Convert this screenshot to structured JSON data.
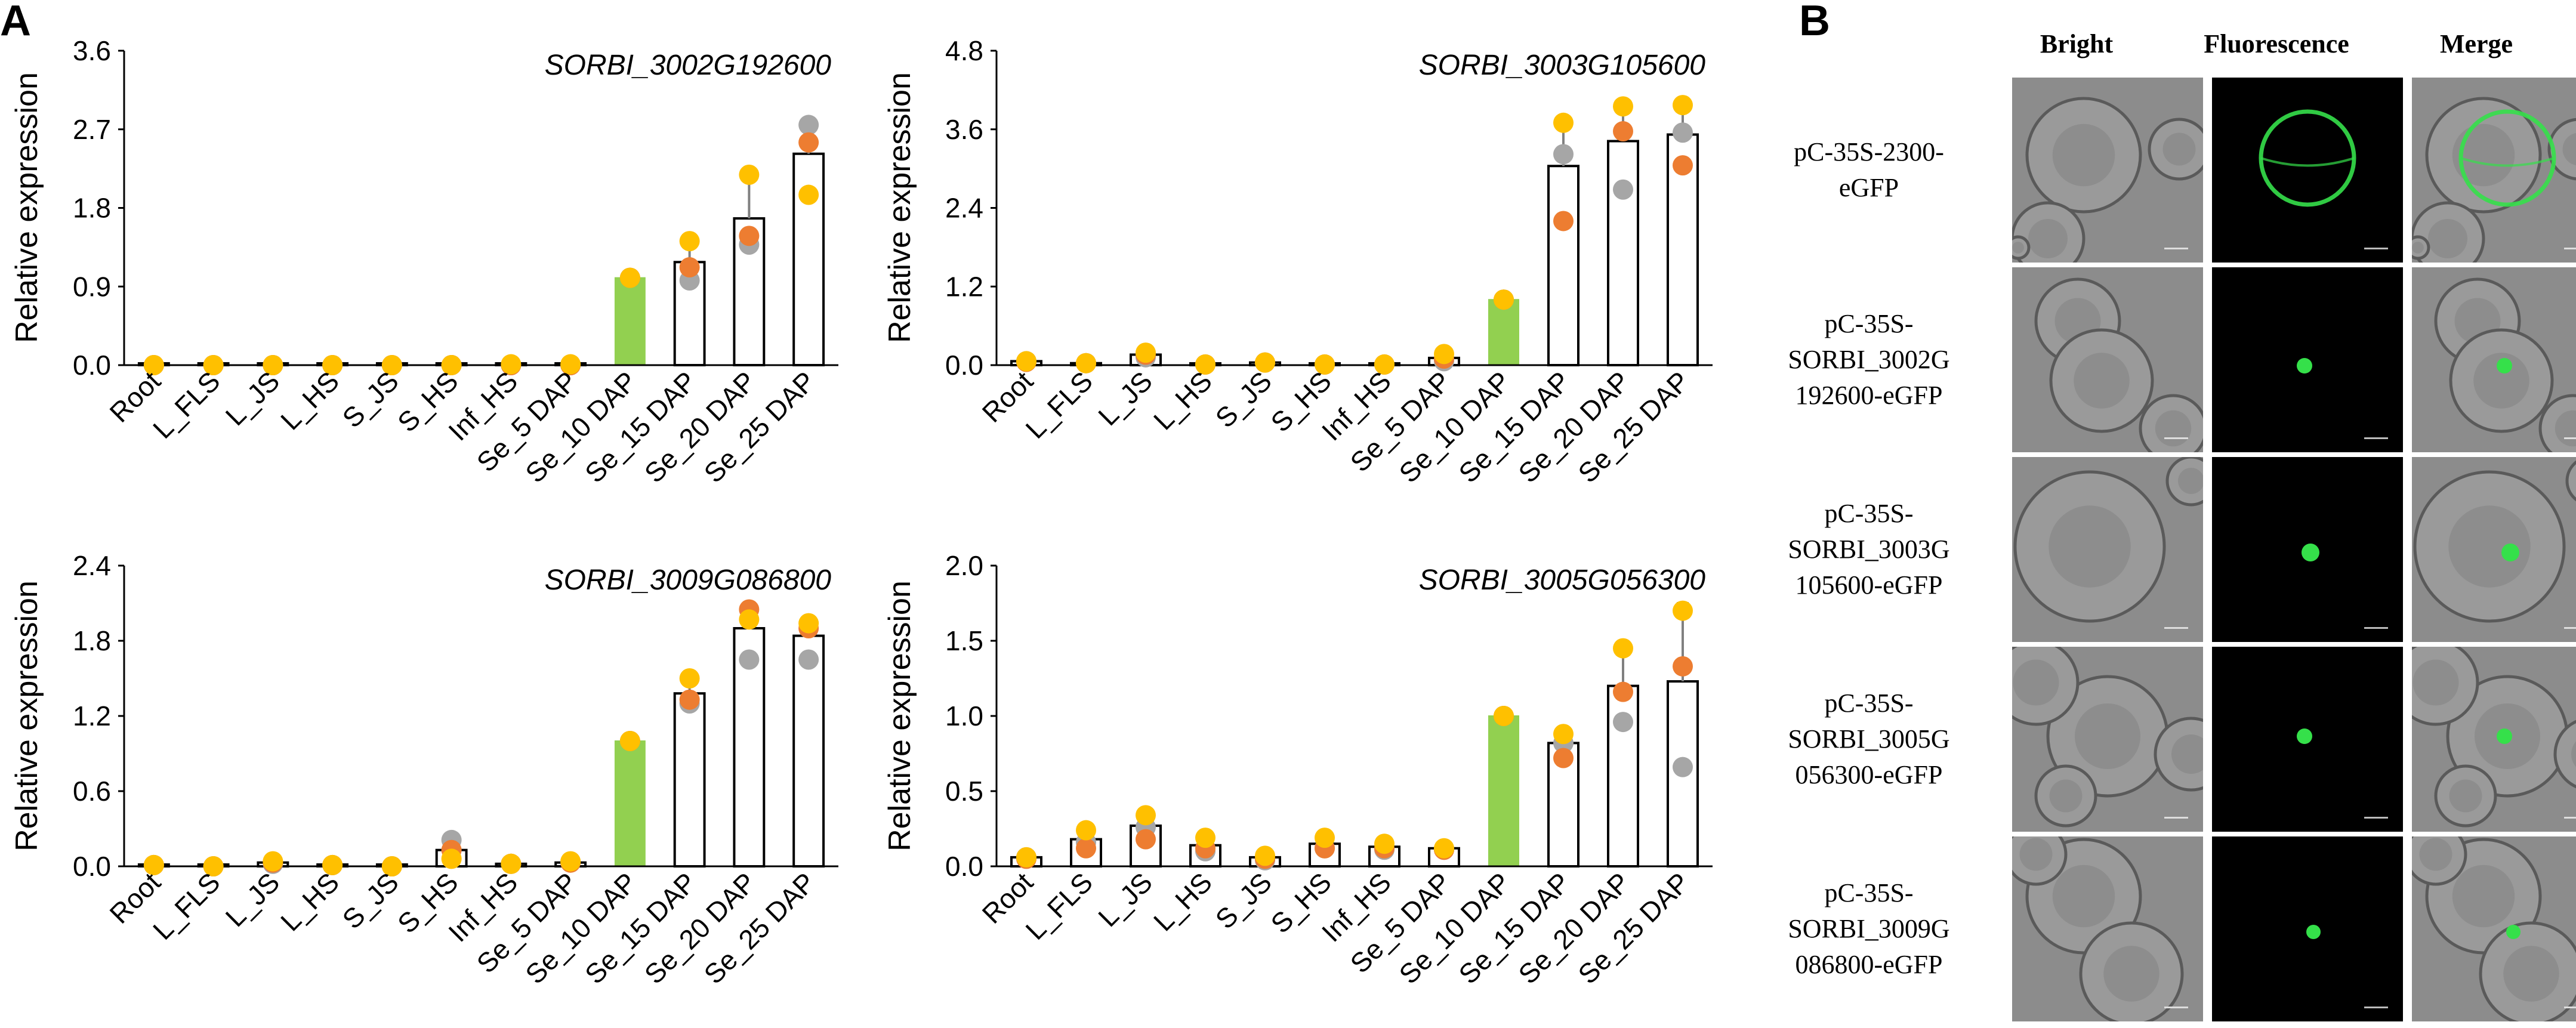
{
  "panels": {
    "a_label": "A",
    "b_label": "B"
  },
  "colors": {
    "bar_outline": "#000000",
    "reference_fill": "#92D050",
    "gray_dot": "#A6A6A6",
    "orange_dot": "#ED7D31",
    "yellow_dot": "#FFC000",
    "gfp": "#35e04a"
  },
  "chart_data": [
    {
      "type": "bar",
      "title": "SORBI_3002G192600",
      "xlabel": "",
      "ylabel": "Relative expression",
      "ylim": [
        0,
        3.6
      ],
      "yticks": [
        "0.0",
        "0.9",
        "1.8",
        "2.7",
        "3.6"
      ],
      "categories": [
        "Root",
        "L_FLS",
        "L_JS",
        "L_HS",
        "S_JS",
        "S_HS",
        "Inf_HS",
        "Se_5 DAP",
        "Se_10 DAP",
        "Se_15 DAP",
        "Se_20 DAP",
        "Se_25 DAP"
      ],
      "values": [
        0.0,
        0.0,
        0.0,
        0.0,
        0.0,
        0.0,
        0.01,
        0.01,
        1.0,
        1.18,
        1.68,
        2.42
      ],
      "errors": [
        0.0,
        0.0,
        0.0,
        0.0,
        0.0,
        0.0,
        0.0,
        0.0,
        0.0,
        0.2,
        0.48,
        0.4
      ],
      "replicates": {
        "gray": [
          0.0,
          0.0,
          0.0,
          0.0,
          0.0,
          0.0,
          0.0,
          0.0,
          1.0,
          0.97,
          1.38,
          2.75
        ],
        "orange": [
          0.0,
          0.0,
          0.0,
          0.0,
          0.0,
          0.0,
          0.0,
          0.0,
          1.0,
          1.12,
          1.48,
          2.55
        ],
        "yellow": [
          0.0,
          0.0,
          0.0,
          0.0,
          0.0,
          0.0,
          0.01,
          0.01,
          1.0,
          1.42,
          2.18,
          1.95
        ]
      }
    },
    {
      "type": "bar",
      "title": "SORBI_3003G105600",
      "xlabel": "",
      "ylabel": "Relative expression",
      "ylim": [
        0,
        4.8
      ],
      "yticks": [
        "0.0",
        "1.2",
        "2.4",
        "3.6",
        "4.8"
      ],
      "categories": [
        "Root",
        "L_FLS",
        "L_JS",
        "L_HS",
        "S_JS",
        "S_HS",
        "Inf_HS",
        "Se_5 DAP",
        "Se_10 DAP",
        "Se_15 DAP",
        "Se_20 DAP",
        "Se_25 DAP"
      ],
      "values": [
        0.06,
        0.03,
        0.16,
        0.01,
        0.04,
        0.01,
        0.01,
        0.11,
        1.0,
        3.04,
        3.42,
        3.52
      ],
      "errors": [
        0.0,
        0.0,
        0.0,
        0.0,
        0.0,
        0.0,
        0.0,
        0.0,
        0.0,
        0.75,
        0.55,
        0.45
      ],
      "replicates": {
        "gray": [
          0.06,
          0.03,
          0.12,
          0.01,
          0.04,
          0.01,
          0.01,
          0.06,
          1.0,
          3.22,
          2.68,
          3.55
        ],
        "orange": [
          0.05,
          0.03,
          0.16,
          0.01,
          0.04,
          0.01,
          0.01,
          0.1,
          1.0,
          2.2,
          3.57,
          3.05
        ],
        "yellow": [
          0.06,
          0.03,
          0.19,
          0.01,
          0.04,
          0.01,
          0.01,
          0.17,
          1.0,
          3.7,
          3.95,
          3.97
        ]
      }
    },
    {
      "type": "bar",
      "title": "SORBI_3009G086800",
      "xlabel": "",
      "ylabel": "Relative expression",
      "ylim": [
        0,
        2.4
      ],
      "yticks": [
        "0.0",
        "0.6",
        "1.2",
        "1.8",
        "2.4"
      ],
      "categories": [
        "Root",
        "L_FLS",
        "L_JS",
        "L_HS",
        "S_JS",
        "S_HS",
        "Inf_HS",
        "Se_5 DAP",
        "Se_10 DAP",
        "Se_15 DAP",
        "Se_20 DAP",
        "Se_25 DAP"
      ],
      "values": [
        0.01,
        0.0,
        0.03,
        0.01,
        0.0,
        0.13,
        0.02,
        0.03,
        1.0,
        1.38,
        1.9,
        1.84
      ],
      "errors": [
        0.0,
        0.0,
        0.0,
        0.0,
        0.0,
        0.0,
        0.0,
        0.0,
        0.0,
        0.1,
        0.16,
        0.12
      ],
      "replicates": {
        "gray": [
          0.01,
          0.0,
          0.02,
          0.01,
          0.0,
          0.21,
          0.02,
          0.03,
          1.0,
          1.3,
          1.65,
          1.65
        ],
        "orange": [
          0.01,
          0.0,
          0.03,
          0.01,
          0.0,
          0.13,
          0.02,
          0.03,
          1.0,
          1.33,
          2.05,
          1.9
        ],
        "yellow": [
          0.01,
          0.0,
          0.04,
          0.01,
          0.0,
          0.06,
          0.02,
          0.04,
          1.0,
          1.5,
          1.97,
          1.94
        ]
      }
    },
    {
      "type": "bar",
      "title": "SORBI_3005G056300",
      "xlabel": "",
      "ylabel": "Relative expression",
      "ylim": [
        0,
        2.0
      ],
      "yticks": [
        "0.0",
        "0.5",
        "1.0",
        "1.5",
        "2.0"
      ],
      "categories": [
        "Root",
        "L_FLS",
        "L_JS",
        "L_HS",
        "S_JS",
        "S_HS",
        "Inf_HS",
        "Se_5 DAP",
        "Se_10 DAP",
        "Se_15 DAP",
        "Se_20 DAP",
        "Se_25 DAP"
      ],
      "values": [
        0.06,
        0.18,
        0.27,
        0.14,
        0.06,
        0.15,
        0.13,
        0.12,
        1.0,
        0.82,
        1.2,
        1.23
      ],
      "errors": [
        0.0,
        0.0,
        0.0,
        0.0,
        0.0,
        0.0,
        0.0,
        0.0,
        0.0,
        0.08,
        0.28,
        0.52
      ],
      "replicates": {
        "gray": [
          0.06,
          0.16,
          0.26,
          0.1,
          0.04,
          0.12,
          0.11,
          0.11,
          1.0,
          0.82,
          0.96,
          0.66
        ],
        "orange": [
          0.05,
          0.12,
          0.18,
          0.12,
          0.05,
          0.12,
          0.12,
          0.11,
          1.0,
          0.72,
          1.16,
          1.33
        ],
        "yellow": [
          0.06,
          0.24,
          0.34,
          0.19,
          0.07,
          0.19,
          0.15,
          0.12,
          1.0,
          0.88,
          1.45,
          1.7
        ]
      }
    }
  ],
  "microscopy": {
    "columns": [
      "Bright",
      "Fluorescence",
      "Merge"
    ],
    "rows": [
      {
        "label_lines": [
          "pC-35S-2300-",
          "eGFP"
        ]
      },
      {
        "label_lines": [
          "pC-35S-",
          "SORBI_3002G",
          "192600-eGFP"
        ]
      },
      {
        "label_lines": [
          "pC-35S-",
          "SORBI_3003G",
          "105600-eGFP"
        ]
      },
      {
        "label_lines": [
          "pC-35S-",
          "SORBI_3005G",
          "056300-eGFP"
        ]
      },
      {
        "label_lines": [
          "pC-35S-",
          "SORBI_3009G",
          "086800-eGFP"
        ]
      }
    ]
  }
}
